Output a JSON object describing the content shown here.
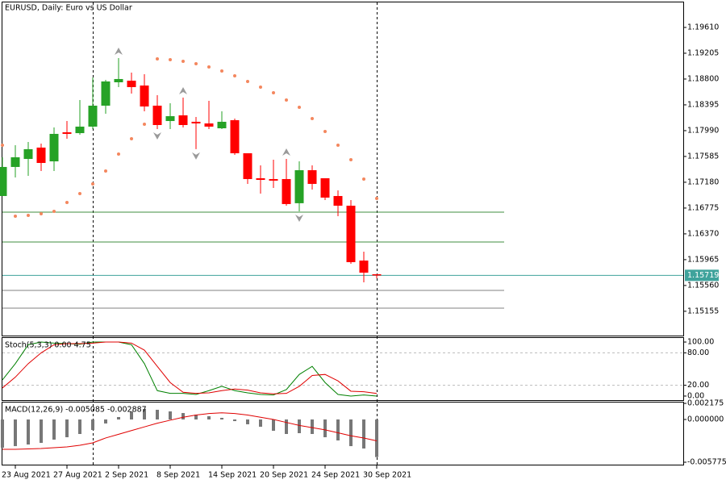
{
  "chart_data": [
    {
      "type": "candlestick",
      "title": "EURUSD, Daily:  Euro vs US Dollar",
      "categories": [
        null,
        "23 Aug 2021",
        null,
        null,
        null,
        "27 Aug 2021",
        null,
        null,
        null,
        "2 Sep 2021",
        null,
        null,
        null,
        "8 Sep 2021",
        null,
        null,
        null,
        "14 Sep 2021",
        null,
        null,
        null,
        "20 Sep 2021",
        null,
        null,
        null,
        "24 Sep 2021",
        null,
        null,
        null,
        "30 Sep 2021"
      ],
      "open": [
        1.16964,
        1.1742,
        1.17546,
        1.17724,
        1.17508,
        1.17964,
        1.17951,
        1.18053,
        1.18382,
        1.18749,
        1.18774,
        1.18698,
        1.18382,
        1.18141,
        1.1823,
        1.18129,
        1.18103,
        1.18027,
        1.18154,
        1.17635,
        1.17243,
        1.1723,
        1.1723,
        1.16851,
        1.17369,
        1.17243,
        1.16964,
        1.16812,
        1.15951,
        1.15736
      ],
      "high": [
        1.17572,
        1.17762,
        1.17812,
        1.17787,
        1.1804,
        1.18141,
        1.18471,
        1.18825,
        1.18787,
        1.19129,
        1.18901,
        1.18876,
        1.18547,
        1.1842,
        1.18509,
        1.18205,
        1.18458,
        1.18293,
        1.18179,
        1.17635,
        1.17445,
        1.17534,
        1.17546,
        1.17508,
        1.17445,
        1.17243,
        1.17053,
        1.16901,
        1.16091,
        1.15736
      ],
      "low": [
        1.16964,
        1.17255,
        1.17281,
        1.17357,
        1.17357,
        1.17863,
        1.17926,
        1.18015,
        1.18255,
        1.18673,
        1.18572,
        1.18293,
        1.18015,
        1.18015,
        1.1804,
        1.17699,
        1.18015,
        1.18015,
        1.1761,
        1.17154,
        1.17002,
        1.17091,
        1.16812,
        1.16724,
        1.17065,
        1.16901,
        1.16648,
        1.15901,
        1.1561,
        1.15673
      ],
      "close": [
        1.1742,
        1.17572,
        1.17699,
        1.17483,
        1.17939,
        1.17939,
        1.18053,
        1.18382,
        1.18762,
        1.188,
        1.18673,
        1.18369,
        1.18078,
        1.18217,
        1.18078,
        1.18103,
        1.18053,
        1.18129,
        1.17635,
        1.1723,
        1.17217,
        1.17205,
        1.16838,
        1.17369,
        1.17154,
        1.16939,
        1.16812,
        1.15926,
        1.15761,
        1.15719
      ],
      "up_color": "#26a226",
      "down_color": "#ff0000",
      "sar": [
        1.17762,
        1.16648,
        1.1666,
        1.16686,
        1.16724,
        1.16863,
        1.17002,
        1.17154,
        1.17357,
        1.17622,
        1.17863,
        1.18091,
        1.19116,
        1.19104,
        1.19078,
        1.1904,
        1.1899,
        1.18926,
        1.1885,
        1.18762,
        1.18673,
        1.18585,
        1.18471,
        1.18357,
        1.18179,
        1.17977,
        1.17762,
        1.17534,
        1.1723,
        1.16926
      ],
      "sar_color": "#f4875e",
      "fractals_up": [
        null,
        null,
        null,
        null,
        null,
        null,
        null,
        null,
        null,
        1.19129,
        null,
        null,
        null,
        null,
        1.18509,
        null,
        null,
        null,
        null,
        null,
        null,
        null,
        1.17546,
        null,
        null,
        null,
        null,
        null,
        null,
        null
      ],
      "fractals_down": [
        null,
        null,
        null,
        null,
        null,
        null,
        null,
        null,
        null,
        null,
        null,
        null,
        1.18015,
        null,
        null,
        1.17699,
        null,
        null,
        null,
        null,
        null,
        null,
        null,
        1.16724,
        null,
        null,
        null,
        null,
        null,
        null
      ],
      "fractal_color": "#9a9a9a",
      "levels": [
        {
          "value": 1.16711,
          "color": "#3f8f3f"
        },
        {
          "value": 1.16242,
          "color": "#3f8f3f"
        },
        {
          "value": 1.15483,
          "color": "#808080"
        },
        {
          "value": 1.15204,
          "color": "#808080"
        }
      ],
      "last_price": 1.15719,
      "last_price_color": "#3fa39c",
      "ylim": [
        1.14761,
        1.20015
      ],
      "yticks": [
        {
          "value": 1.1961,
          "label": "1.19610"
        },
        1.19205,
        {
          "value": 1.188,
          "label": "1.18800"
        },
        1.18395,
        {
          "value": 1.1799,
          "label": "1.17990"
        },
        1.17585,
        {
          "value": 1.1718,
          "label": "1.17180"
        },
        1.16775,
        {
          "value": 1.1637,
          "label": "1.16370"
        },
        1.15965,
        {
          "value": 1.1556,
          "label": "1.15560"
        },
        1.15155
      ]
    },
    {
      "type": "stochastic",
      "title": "Stoch(5,3,3) 0.00 4.75",
      "series": [
        {
          "color": "#008000",
          "values": [
            30,
            60,
            95,
            100,
            98,
            97,
            96,
            100,
            100,
            100,
            95,
            60,
            10,
            5,
            5,
            3,
            10,
            18,
            10,
            6,
            3,
            2,
            12,
            40,
            55,
            25,
            3,
            0,
            2,
            0
          ]
        },
        {
          "color": "#e00000",
          "values": [
            15,
            35,
            60,
            80,
            95,
            97,
            97,
            98,
            100,
            100,
            98,
            85,
            55,
            25,
            7,
            5,
            6,
            10,
            13,
            11,
            6,
            4,
            5,
            18,
            38,
            40,
            28,
            9,
            8,
            4.75
          ]
        }
      ],
      "dashed_levels": [
        80,
        20
      ],
      "ylim": [
        -9,
        109
      ],
      "yticks": [
        {
          "value": 100,
          "label": "100.00"
        },
        {
          "value": 80,
          "label": "80.00"
        },
        {
          "value": 20,
          "label": "20.00"
        },
        {
          "value": 0,
          "label": "0.00"
        }
      ]
    },
    {
      "type": "macd",
      "title": "MACD(12,26,9) -0.005085 -0.002887",
      "histogram": {
        "color": "#777777",
        "values": [
          -0.00381,
          -0.0036,
          -0.00338,
          -0.00316,
          -0.00272,
          -0.0024,
          -0.00196,
          -0.00142,
          -0.00054,
          0.00033,
          0.00109,
          0.00142,
          0.00131,
          0.00109,
          0.00087,
          0.00065,
          0.00044,
          0.00022,
          -0.00022,
          -0.00065,
          -0.00098,
          -0.00153,
          -0.00196,
          -0.00185,
          -0.00196,
          -0.0024,
          -0.00283,
          -0.0036,
          -0.00392,
          -0.005085
        ]
      },
      "signal": {
        "color": "#e00000",
        "values": [
          -0.00403,
          -0.00403,
          -0.00398,
          -0.00392,
          -0.00381,
          -0.0037,
          -0.00349,
          -0.00316,
          -0.0025,
          -0.002,
          -0.0015,
          -0.001,
          -0.0005,
          -0.0001,
          0.0003,
          0.0006,
          0.0008,
          0.0009,
          0.0008,
          0.0006,
          0.0003,
          0.0,
          -0.0004,
          -0.0008,
          -0.0011,
          -0.0014,
          -0.0018,
          -0.0022,
          -0.0025,
          -0.002887
        ]
      },
      "ylim": [
        -0.00621,
        0.00229
      ],
      "yticks": [
        0.002175,
        {
          "value": 0,
          "label": "0.000000"
        },
        -0.005775
      ]
    }
  ]
}
